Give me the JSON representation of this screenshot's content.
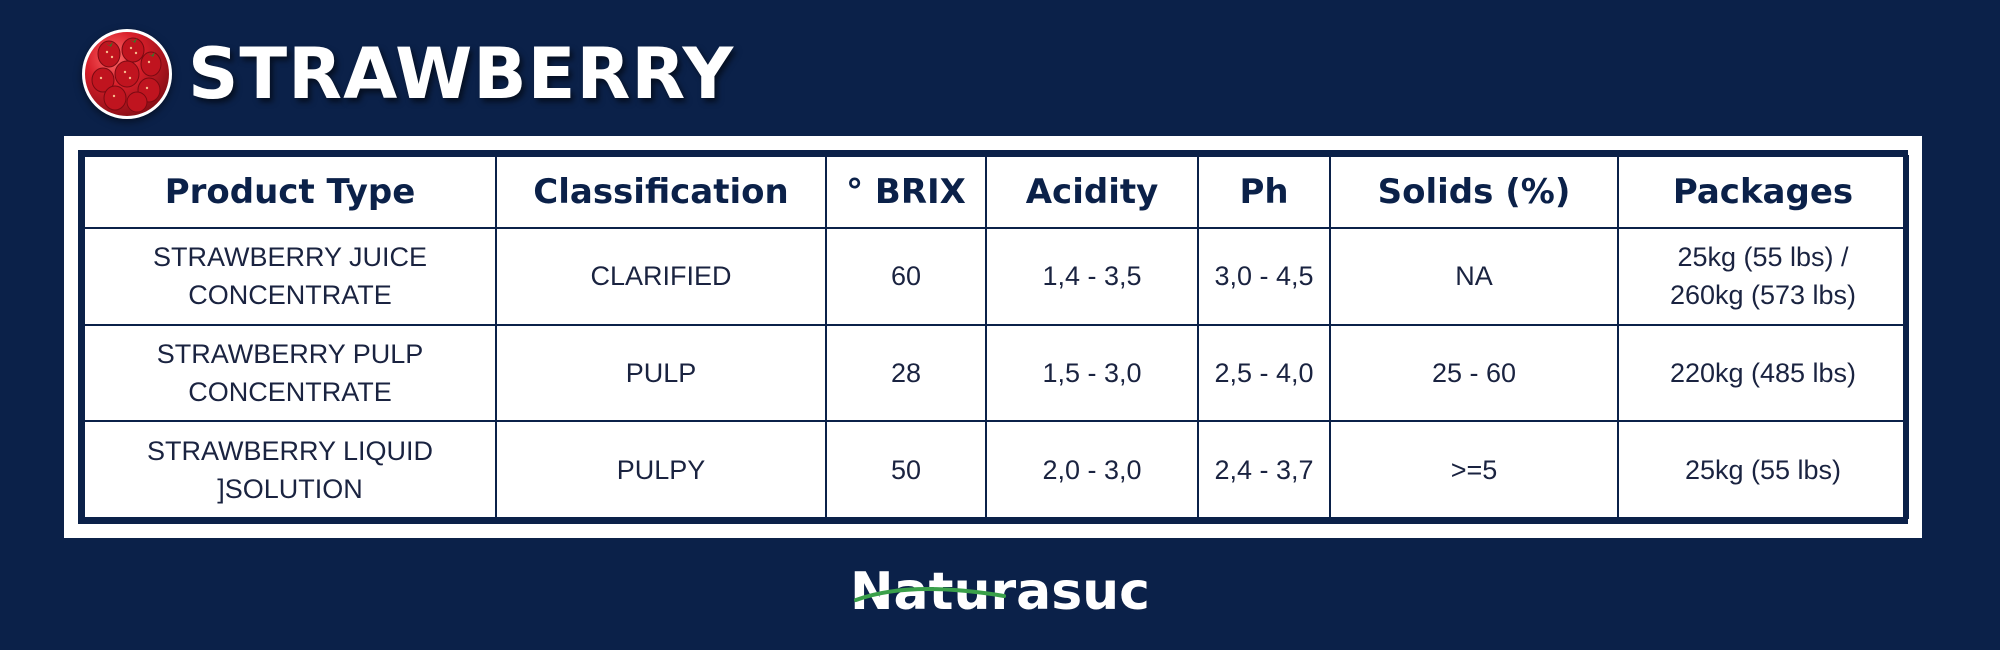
{
  "header": {
    "title": "STRAWBERRY",
    "image_icon": "strawberries-photo-icon"
  },
  "table": {
    "columns": [
      "Product Type",
      "Classification",
      "° BRIX",
      "Acidity",
      "Ph",
      "Solids (%)",
      "Packages"
    ],
    "rows": [
      {
        "product_type": [
          "STRAWBERRY JUICE",
          "CONCENTRATE"
        ],
        "classification": "CLARIFIED",
        "brix": "60",
        "acidity": "1,4 - 3,5",
        "ph": "3,0 - 4,5",
        "solids": "NA",
        "packages": [
          "25kg (55 lbs) /",
          "260kg (573 lbs)"
        ]
      },
      {
        "product_type": [
          "STRAWBERRY PULP",
          "CONCENTRATE"
        ],
        "classification": "PULP",
        "brix": "28",
        "acidity": "1,5 - 3,0",
        "ph": "2,5 - 4,0",
        "solids": "25 - 60",
        "packages": [
          "220kg (485 lbs)"
        ]
      },
      {
        "product_type": [
          "STRAWBERRY LIQUID",
          "]SOLUTION"
        ],
        "classification": "PULPY",
        "brix": "50",
        "acidity": "2,0 - 3,0",
        "ph": "2,4 - 3,7",
        "solids": ">=5",
        "packages": [
          "25kg (55 lbs)"
        ]
      }
    ]
  },
  "footer": {
    "logo_text": "Naturasuc",
    "swoosh_color": "#3aa04a"
  },
  "colors": {
    "background": "#0b2149",
    "table_border": "#0b2149",
    "text_white": "#ffffff"
  }
}
